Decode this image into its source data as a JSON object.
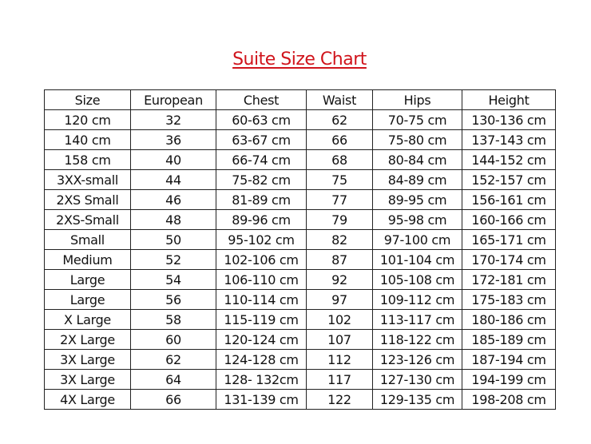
{
  "title": "Suite Size Chart",
  "colors": {
    "title": "#d0141c",
    "border": "#222222"
  },
  "table": {
    "headers": [
      "Size",
      "European",
      "Chest",
      "Waist",
      "Hips",
      "Height"
    ],
    "rows": [
      [
        "120 cm",
        "32",
        "60-63 cm",
        "62",
        "70-75 cm",
        "130-136 cm"
      ],
      [
        "140 cm",
        "36",
        "63-67 cm",
        "66",
        "75-80 cm",
        "137-143 cm"
      ],
      [
        "158 cm",
        "40",
        "66-74 cm",
        "68",
        "80-84 cm",
        "144-152 cm"
      ],
      [
        "3XX-small",
        "44",
        "75-82 cm",
        "75",
        "84-89 cm",
        "152-157 cm"
      ],
      [
        "2XS Small",
        "46",
        "81-89 cm",
        "77",
        "89-95 cm",
        "156-161 cm"
      ],
      [
        "2XS-Small",
        "48",
        "89-96 cm",
        "79",
        "95-98 cm",
        "160-166 cm"
      ],
      [
        "Small",
        "50",
        "95-102 cm",
        "82",
        "97-100 cm",
        "165-171 cm"
      ],
      [
        "Medium",
        "52",
        "102-106 cm",
        "87",
        "101-104 cm",
        "170-174 cm"
      ],
      [
        "Large",
        "54",
        "106-110 cm",
        "92",
        "105-108 cm",
        "172-181 cm"
      ],
      [
        "Large",
        "56",
        "110-114 cm",
        "97",
        "109-112 cm",
        "175-183 cm"
      ],
      [
        "X Large",
        "58",
        "115-119 cm",
        "102",
        "113-117 cm",
        "180-186 cm"
      ],
      [
        "2X Large",
        "60",
        "120-124 cm",
        "107",
        "118-122 cm",
        "185-189 cm"
      ],
      [
        "3X Large",
        "62",
        "124-128 cm",
        "112",
        "123-126 cm",
        "187-194 cm"
      ],
      [
        "3X Large",
        "64",
        "128- 132cm",
        "117",
        "127-130 cm",
        "194-199 cm"
      ],
      [
        "4X Large",
        "66",
        "131-139 cm",
        "122",
        "129-135 cm",
        "198-208 cm"
      ]
    ]
  }
}
